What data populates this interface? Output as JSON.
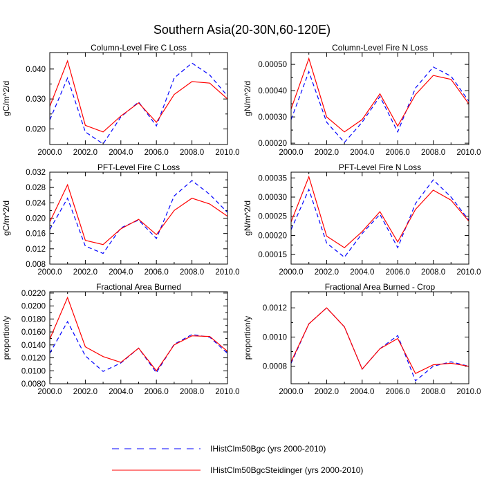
{
  "figure": {
    "title": "Southern Asia(20-30N,60-120E)"
  },
  "legend": {
    "placement": "bottom-center",
    "entries": [
      {
        "label": "IHistClm50Bgc (yrs 2000-2010)",
        "color": "#0000ff",
        "style": "dashed"
      },
      {
        "label": "IHistClm50BgcSteidinger (yrs 2000-2010)",
        "color": "#ff0000",
        "style": "solid"
      }
    ]
  },
  "chart_data": [
    {
      "type": "line",
      "title": "Column-Level Fire C Loss",
      "xlabel": "",
      "ylabel": "gC/m^2/d",
      "xlim": [
        2000,
        2010
      ],
      "ylim": [
        0.0148,
        0.0455
      ],
      "xticks": [
        "2000.0",
        "2002.0",
        "2004.0",
        "2006.0",
        "2008.0",
        "2010.0"
      ],
      "yticks": [
        0.02,
        0.03,
        0.04
      ],
      "ytick_labels": [
        "0.020",
        "0.030",
        "0.040"
      ],
      "x": [
        2000,
        2001,
        2002,
        2003,
        2004,
        2005,
        2006,
        2007,
        2008,
        2009,
        2010
      ],
      "series": [
        {
          "name": "IHistClm50Bgc (yrs 2000-2010)",
          "color": "#0000ff",
          "style": "dashed",
          "values": [
            0.023,
            0.037,
            0.019,
            0.015,
            0.024,
            0.029,
            0.021,
            0.037,
            0.042,
            0.038,
            0.031
          ]
        },
        {
          "name": "IHistClm50BgcSteidinger (yrs 2000-2010)",
          "color": "#ff0000",
          "style": "solid",
          "values": [
            0.0275,
            0.0427,
            0.0212,
            0.019,
            0.0243,
            0.0287,
            0.0222,
            0.0315,
            0.0358,
            0.0353,
            0.03
          ]
        }
      ]
    },
    {
      "type": "line",
      "title": "Column-Level Fire N Loss",
      "xlabel": "",
      "ylabel": "gN/m^2/d",
      "xlim": [
        2000,
        2010
      ],
      "ylim": [
        0.000195,
        0.000545
      ],
      "xticks": [
        "2000.0",
        "2002.0",
        "2004.0",
        "2006.0",
        "2008.0",
        "2010.0"
      ],
      "yticks": [
        0.0002,
        0.0003,
        0.0004,
        0.0005
      ],
      "ytick_labels": [
        "0.00020",
        "0.00030",
        "0.00040",
        "0.00050"
      ],
      "x": [
        2000,
        2001,
        2002,
        2003,
        2004,
        2005,
        2006,
        2007,
        2008,
        2009,
        2010
      ],
      "series": [
        {
          "name": "IHistClm50Bgc (yrs 2000-2010)",
          "color": "#0000ff",
          "style": "dashed",
          "values": [
            0.00029,
            0.000472,
            0.00028,
            0.000203,
            0.00028,
            0.000378,
            0.000243,
            0.00041,
            0.00049,
            0.000455,
            0.00036
          ]
        },
        {
          "name": "IHistClm50BgcSteidinger (yrs 2000-2010)",
          "color": "#ff0000",
          "style": "solid",
          "values": [
            0.00033,
            0.000522,
            0.0003,
            0.000243,
            0.00029,
            0.000388,
            0.000265,
            0.000385,
            0.000458,
            0.000443,
            0.00035
          ]
        }
      ]
    },
    {
      "type": "line",
      "title": "PFT-Level Fire C Loss",
      "xlabel": "",
      "ylabel": "gC/m^2/d",
      "xlim": [
        2000,
        2010
      ],
      "ylim": [
        0.008,
        0.032
      ],
      "xticks": [
        "2000.0",
        "2002.0",
        "2004.0",
        "2006.0",
        "2008.0",
        "2010.0"
      ],
      "yticks": [
        0.008,
        0.012,
        0.016,
        0.02,
        0.024,
        0.028,
        0.032
      ],
      "ytick_labels": [
        "0.008",
        "0.012",
        "0.016",
        "0.020",
        "0.024",
        "0.028",
        "0.032"
      ],
      "x": [
        2000,
        2001,
        2002,
        2003,
        2004,
        2005,
        2006,
        2007,
        2008,
        2009,
        2010
      ],
      "series": [
        {
          "name": "IHistClm50Bgc (yrs 2000-2010)",
          "color": "#0000ff",
          "style": "dashed",
          "values": [
            0.017,
            0.0252,
            0.0127,
            0.0108,
            0.0175,
            0.0195,
            0.0147,
            0.0258,
            0.0298,
            0.0262,
            0.0215
          ]
        },
        {
          "name": "IHistClm50BgcSteidinger (yrs 2000-2010)",
          "color": "#ff0000",
          "style": "solid",
          "values": [
            0.019,
            0.0287,
            0.0142,
            0.0131,
            0.0172,
            0.0197,
            0.0157,
            0.022,
            0.0252,
            0.0237,
            0.0205
          ]
        }
      ]
    },
    {
      "type": "line",
      "title": "PFT-Level Fire N Loss",
      "xlabel": "",
      "ylabel": "gN/m^2/d",
      "xlim": [
        2000,
        2010
      ],
      "ylim": [
        0.000125,
        0.000365
      ],
      "xticks": [
        "2000.0",
        "2002.0",
        "2004.0",
        "2006.0",
        "2008.0",
        "2010.0"
      ],
      "yticks": [
        0.00015,
        0.0002,
        0.00025,
        0.0003,
        0.00035
      ],
      "ytick_labels": [
        "0.00015",
        "0.00020",
        "0.00025",
        "0.00030",
        "0.00035"
      ],
      "x": [
        2000,
        2001,
        2002,
        2003,
        2004,
        2005,
        2006,
        2007,
        2008,
        2009,
        2010
      ],
      "series": [
        {
          "name": "IHistClm50Bgc (yrs 2000-2010)",
          "color": "#0000ff",
          "style": "dashed",
          "values": [
            0.000215,
            0.00032,
            0.00018,
            0.000143,
            0.000205,
            0.000255,
            0.000168,
            0.000283,
            0.000345,
            0.0003,
            0.00024
          ]
        },
        {
          "name": "IHistClm50BgcSteidinger (yrs 2000-2010)",
          "color": "#ff0000",
          "style": "solid",
          "values": [
            0.000235,
            0.000353,
            0.000198,
            0.000168,
            0.00021,
            0.000262,
            0.000183,
            0.000268,
            0.000318,
            0.000292,
            0.000237
          ]
        }
      ]
    },
    {
      "type": "line",
      "title": "Fractional Area Burned",
      "xlabel": "",
      "ylabel": "proportion/y",
      "xlim": [
        2000,
        2010
      ],
      "ylim": [
        0.008,
        0.0222
      ],
      "xticks": [
        "2000.0",
        "2002.0",
        "2004.0",
        "2006.0",
        "2008.0",
        "2010.0"
      ],
      "yticks": [
        0.008,
        0.01,
        0.012,
        0.014,
        0.016,
        0.018,
        0.02,
        0.022
      ],
      "ytick_labels": [
        "0.0080",
        "0.0100",
        "0.0120",
        "0.0140",
        "0.0160",
        "0.0180",
        "0.0200",
        "0.0220"
      ],
      "x": [
        2000,
        2001,
        2002,
        2003,
        2004,
        2005,
        2006,
        2007,
        2008,
        2009,
        2010
      ],
      "series": [
        {
          "name": "IHistClm50Bgc (yrs 2000-2010)",
          "color": "#0000ff",
          "style": "dashed",
          "values": [
            0.0127,
            0.0176,
            0.0123,
            0.0099,
            0.0112,
            0.0135,
            0.0097,
            0.0141,
            0.0156,
            0.0152,
            0.0127
          ]
        },
        {
          "name": "IHistClm50BgcSteidinger (yrs 2000-2010)",
          "color": "#ff0000",
          "style": "solid",
          "values": [
            0.0149,
            0.0213,
            0.0137,
            0.0122,
            0.0113,
            0.0135,
            0.01,
            0.014,
            0.0154,
            0.0153,
            0.013
          ]
        }
      ]
    },
    {
      "type": "line",
      "title": "Fractional Area Burned - Crop",
      "xlabel": "",
      "ylabel": "proportion/y",
      "xlim": [
        2000,
        2010
      ],
      "ylim": [
        0.00068,
        0.00131
      ],
      "xticks": [
        "2000.0",
        "2002.0",
        "2004.0",
        "2006.0",
        "2008.0",
        "2010.0"
      ],
      "yticks": [
        0.0008,
        0.001,
        0.0012
      ],
      "ytick_labels": [
        "0.0008",
        "0.0010",
        "0.0012"
      ],
      "x": [
        2000,
        2001,
        2002,
        2003,
        2004,
        2005,
        2006,
        2007,
        2008,
        2009,
        2010
      ],
      "series": [
        {
          "name": "IHistClm50Bgc (yrs 2000-2010)",
          "color": "#0000ff",
          "style": "dashed",
          "values": [
            0.00082,
            0.00109,
            0.0012,
            0.00107,
            0.00078,
            0.00092,
            0.00101,
            0.0007,
            0.0008,
            0.00083,
            0.0008
          ]
        },
        {
          "name": "IHistClm50BgcSteidinger (yrs 2000-2010)",
          "color": "#ff0000",
          "style": "solid",
          "values": [
            0.00083,
            0.00109,
            0.0012,
            0.00107,
            0.00078,
            0.00092,
            0.00099,
            0.00075,
            0.00081,
            0.00082,
            0.0008
          ]
        }
      ]
    }
  ]
}
